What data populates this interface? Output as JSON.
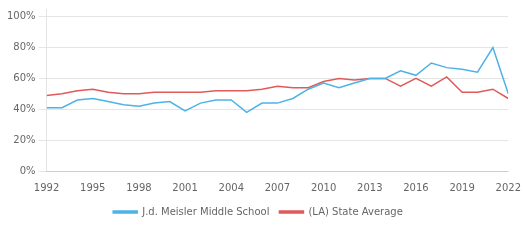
{
  "chart_data": {
    "type": "line",
    "x": [
      1992,
      1993,
      1994,
      1995,
      1996,
      1997,
      1998,
      1999,
      2000,
      2001,
      2002,
      2003,
      2004,
      2005,
      2006,
      2007,
      2008,
      2009,
      2010,
      2011,
      2012,
      2013,
      2014,
      2015,
      2016,
      2017,
      2018,
      2019,
      2020,
      2021,
      2022
    ],
    "series": [
      {
        "name": "J.d. Meisler Middle School",
        "color": "#4db3e6",
        "values": [
          0.41,
          0.41,
          0.46,
          0.47,
          0.45,
          0.43,
          0.42,
          0.44,
          0.45,
          0.39,
          0.44,
          0.46,
          0.46,
          0.38,
          0.44,
          0.44,
          0.47,
          0.53,
          0.57,
          0.54,
          0.57,
          0.6,
          0.6,
          0.65,
          0.62,
          0.7,
          0.67,
          0.66,
          0.64,
          0.8,
          0.5
        ]
      },
      {
        "name": "(LA) State Average",
        "color": "#e05a5a",
        "values": [
          0.49,
          0.5,
          0.52,
          0.53,
          0.51,
          0.5,
          0.5,
          0.51,
          0.51,
          0.51,
          0.51,
          0.52,
          0.52,
          0.52,
          0.53,
          0.55,
          0.54,
          0.54,
          0.58,
          0.6,
          0.59,
          0.6,
          0.6,
          0.55,
          0.6,
          0.55,
          0.61,
          0.51,
          0.51,
          0.53,
          0.47
        ]
      }
    ],
    "xlim": [
      1992,
      2022
    ],
    "xticks": [
      1992,
      1995,
      1998,
      2001,
      2004,
      2007,
      2010,
      2013,
      2016,
      2019,
      2022
    ],
    "ylim": [
      0,
      1.05
    ],
    "yticks": [
      {
        "value": 0,
        "label": "0%"
      },
      {
        "value": 0.2,
        "label": "20%"
      },
      {
        "value": 0.4,
        "label": "40%"
      },
      {
        "value": 0.6,
        "label": "60%"
      },
      {
        "value": 0.8,
        "label": "80%"
      },
      {
        "value": 1.0,
        "label": "100%"
      }
    ],
    "grid": true,
    "legend": "bottom"
  }
}
